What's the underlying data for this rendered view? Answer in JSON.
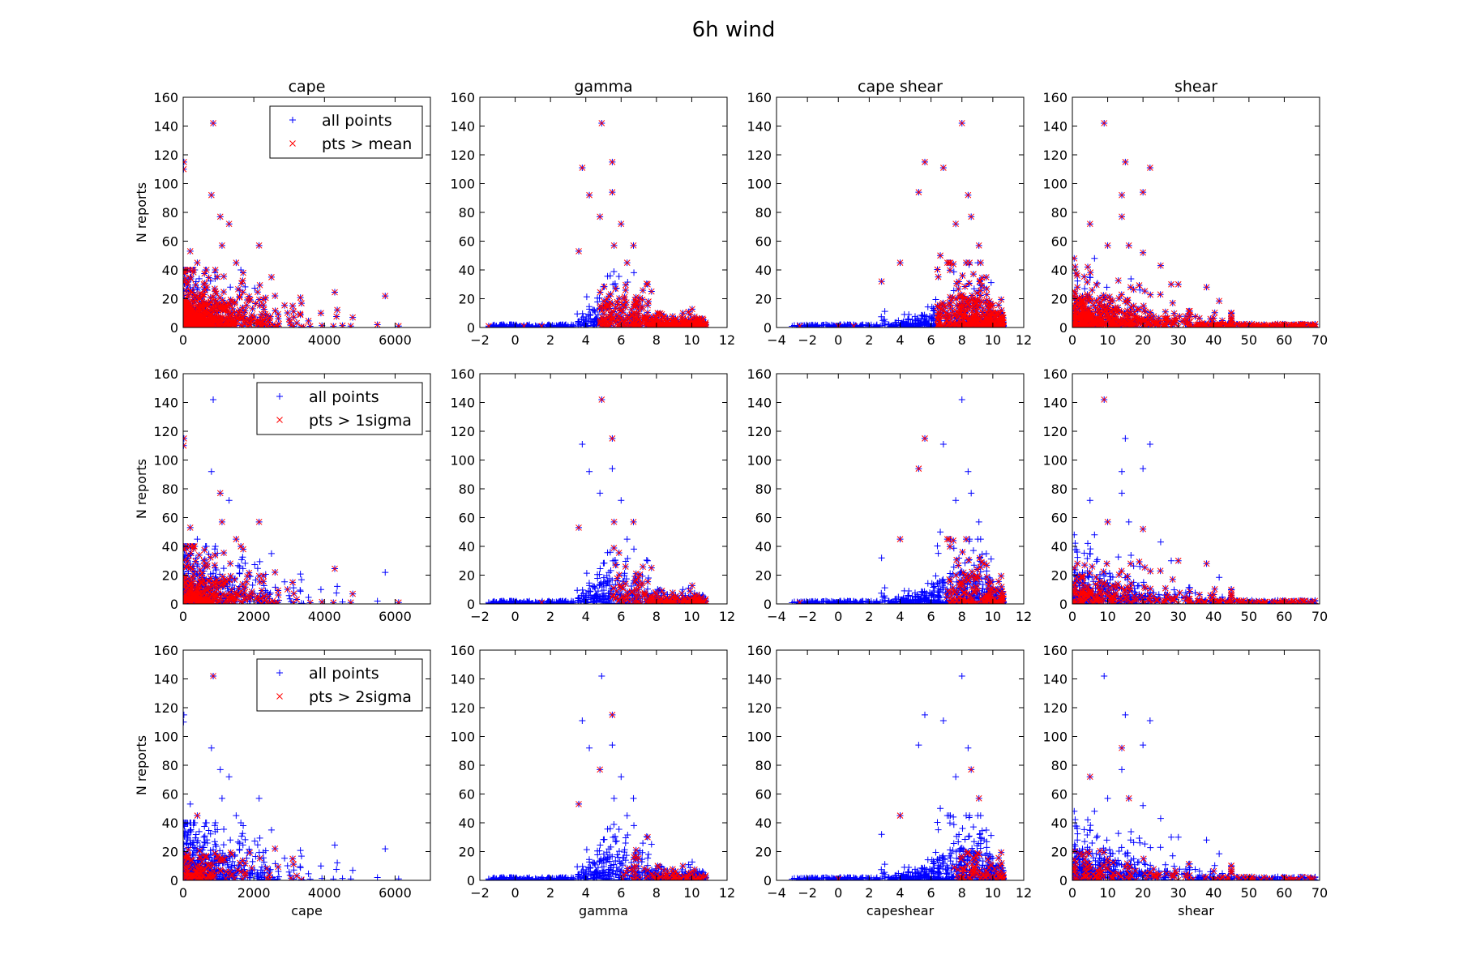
{
  "figure": {
    "title": "6h wind"
  },
  "colors": {
    "all_points": "#0000ff",
    "subset": "#ff0000",
    "axes": "#000000"
  },
  "chart_data": {
    "type": "scatter",
    "ylim": [
      0,
      160
    ],
    "yticks": [
      0,
      20,
      40,
      60,
      80,
      100,
      120,
      140,
      160
    ],
    "ylabel": "N reports",
    "columns": [
      {
        "key": "cape",
        "title": "cape",
        "xlabel": "cape",
        "xlim": [
          0,
          7000
        ],
        "xticks": [
          0,
          2000,
          4000,
          6000
        ]
      },
      {
        "key": "gamma",
        "title": "gamma",
        "xlabel": "gamma",
        "xlim": [
          -2,
          12
        ],
        "xticks": [
          -2,
          0,
          2,
          4,
          6,
          8,
          10,
          12
        ]
      },
      {
        "key": "capeshear",
        "title": "cape shear",
        "xlabel": "capeshear",
        "xlim": [
          -4,
          12
        ],
        "xticks": [
          -4,
          -2,
          0,
          2,
          4,
          6,
          8,
          10,
          12
        ]
      },
      {
        "key": "shear",
        "title": "shear",
        "xlabel": "shear",
        "xlim": [
          0,
          70
        ],
        "xticks": [
          0,
          10,
          20,
          30,
          40,
          50,
          60,
          70
        ]
      }
    ],
    "rows": [
      {
        "legend": [
          "all points",
          "pts > mean"
        ]
      },
      {
        "legend": [
          "all points",
          "pts > 1sigma"
        ]
      },
      {
        "legend": [
          "all points",
          "pts > 2sigma"
        ]
      }
    ],
    "outliers": {
      "cape": [
        [
          20,
          115
        ],
        [
          10,
          110
        ],
        [
          850,
          142
        ],
        [
          800,
          92
        ],
        [
          1050,
          77
        ],
        [
          1300,
          72
        ],
        [
          2150,
          57
        ],
        [
          1100,
          57
        ],
        [
          200,
          53
        ],
        [
          400,
          45
        ],
        [
          1500,
          45
        ],
        [
          1700,
          38
        ],
        [
          2500,
          35
        ],
        [
          2600,
          22
        ],
        [
          3100,
          15
        ],
        [
          3900,
          10
        ],
        [
          4800,
          7
        ],
        [
          5500,
          2
        ],
        [
          6100,
          1
        ]
      ],
      "gamma": [
        [
          4.9,
          142
        ],
        [
          3.8,
          111
        ],
        [
          5.5,
          115
        ],
        [
          4.2,
          92
        ],
        [
          5.5,
          94
        ],
        [
          4.8,
          77
        ],
        [
          6.0,
          72
        ],
        [
          3.6,
          53
        ],
        [
          5.6,
          57
        ],
        [
          6.7,
          57
        ],
        [
          7.5,
          30
        ],
        [
          9.5,
          10
        ],
        [
          10.5,
          4
        ],
        [
          -1.5,
          1
        ],
        [
          0.5,
          1
        ],
        [
          1.5,
          1
        ]
      ],
      "capeshear": [
        [
          8.0,
          142
        ],
        [
          5.6,
          115
        ],
        [
          5.2,
          94
        ],
        [
          6.8,
          111
        ],
        [
          8.4,
          92
        ],
        [
          8.6,
          77
        ],
        [
          7.6,
          72
        ],
        [
          9.1,
          57
        ],
        [
          6.6,
          50
        ],
        [
          4.0,
          45
        ],
        [
          2.8,
          32
        ],
        [
          10.2,
          10
        ],
        [
          10.6,
          3
        ],
        [
          -2.5,
          1
        ],
        [
          0.0,
          1
        ],
        [
          1.0,
          1
        ]
      ],
      "shear": [
        [
          9,
          142
        ],
        [
          15,
          115
        ],
        [
          22,
          111
        ],
        [
          14,
          92
        ],
        [
          20,
          94
        ],
        [
          14,
          77
        ],
        [
          5,
          72
        ],
        [
          10,
          57
        ],
        [
          16,
          57
        ],
        [
          20,
          52
        ],
        [
          25,
          43
        ],
        [
          28,
          30
        ],
        [
          30,
          30
        ],
        [
          38,
          28
        ],
        [
          45,
          6
        ],
        [
          60,
          2
        ],
        [
          68,
          1
        ]
      ]
    }
  }
}
